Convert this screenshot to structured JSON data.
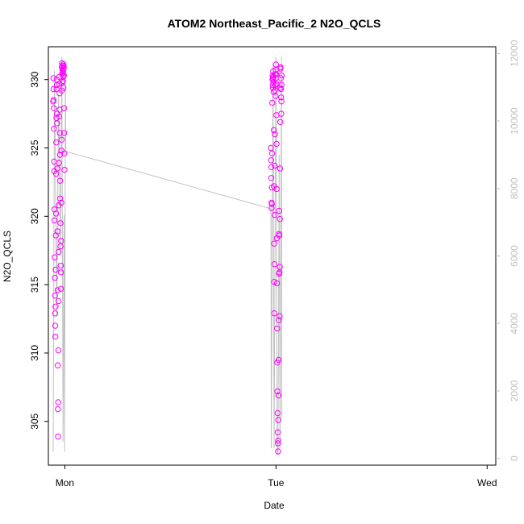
{
  "chart_data": {
    "type": "scatter",
    "title": "ATOM2 Northeast_Pacific_2 N2O_QCLS",
    "xlabel": "Date",
    "ylabel": "N2O_QCLS",
    "x_ticks": [
      "Mon",
      "Tue",
      "Wed"
    ],
    "y_ticks": [
      "305",
      "310",
      "315",
      "320",
      "325",
      "330"
    ],
    "y2_ticks": [
      "0",
      "2000",
      "4000",
      "6000",
      "8000",
      "10000",
      "12000"
    ],
    "xlim": [
      "Sun 22:08",
      "Wed 00:59"
    ],
    "ylim": [
      301.8,
      332.4
    ],
    "y2lim": [
      -200,
      12200
    ],
    "grid": false,
    "colors": {
      "points": "#ff00ff",
      "altitude_line": "#c0c0c0",
      "axis": "#000000",
      "right_axis": "#c0c0c0"
    },
    "series": [
      {
        "values": [
          [
            "Sun 22:41",
            328.4
          ],
          [
            "Sun 22:42",
            330.1
          ],
          [
            "Sun 22:43",
            329.3
          ],
          [
            "Sun 22:44",
            328.5
          ],
          [
            "Sun 22:45",
            327.9
          ],
          [
            "Sun 22:46",
            326.4
          ],
          [
            "Sun 22:47",
            324.0
          ],
          [
            "Sun 22:48",
            323.3
          ],
          [
            "Sun 22:49",
            320.5
          ],
          [
            "Sun 22:50",
            319.7
          ],
          [
            "Sun 22:51",
            317.0
          ],
          [
            "Sun 22:52",
            315.5
          ],
          [
            "Sun 22:53",
            314.2
          ],
          [
            "Sun 22:54",
            312.9
          ],
          [
            "Sun 22:55",
            312.0
          ],
          [
            "Sun 22:56",
            311.2
          ],
          [
            "Sun 22:57",
            313.4
          ],
          [
            "Sun 22:58",
            316.1
          ],
          [
            "Sun 22:59",
            318.6
          ],
          [
            "Sun 23:00",
            320.2
          ],
          [
            "Sun 23:01",
            323.1
          ],
          [
            "Sun 23:02",
            325.4
          ],
          [
            "Sun 23:03",
            327.2
          ],
          [
            "Sun 23:04",
            329.3
          ],
          [
            "Sun 23:05",
            330.0
          ],
          [
            "Sun 23:06",
            329.6
          ],
          [
            "Sun 23:07",
            327.5
          ],
          [
            "Sun 23:08",
            326.8
          ],
          [
            "Sun 23:09",
            323.5
          ],
          [
            "Sun 23:10",
            318.9
          ],
          [
            "Sun 23:11",
            314.6
          ],
          [
            "Sun 23:12",
            309.1
          ],
          [
            "Sun 23:13",
            305.9
          ],
          [
            "Sun 23:14",
            303.9
          ],
          [
            "Sun 23:15",
            306.4
          ],
          [
            "Sun 23:16",
            310.2
          ],
          [
            "Sun 23:17",
            313.8
          ],
          [
            "Sun 23:18",
            317.4
          ],
          [
            "Sun 23:19",
            320.8
          ],
          [
            "Sun 23:20",
            323.9
          ],
          [
            "Sun 23:21",
            327.3
          ],
          [
            "Sun 23:22",
            329.7
          ],
          [
            "Sun 23:23",
            330.2
          ],
          [
            "Sun 23:24",
            329.0
          ],
          [
            "Sun 23:25",
            327.8
          ],
          [
            "Sun 23:26",
            326.1
          ],
          [
            "Sun 23:27",
            324.5
          ],
          [
            "Sun 23:28",
            322.6
          ],
          [
            "Sun 23:29",
            321.3
          ],
          [
            "Sun 23:30",
            319.5
          ],
          [
            "Sun 23:31",
            317.8
          ],
          [
            "Sun 23:32",
            316.4
          ],
          [
            "Sun 23:33",
            314.7
          ],
          [
            "Sun 23:34",
            315.9
          ],
          [
            "Sun 23:35",
            318.2
          ],
          [
            "Sun 23:36",
            321.0
          ],
          [
            "Sun 23:37",
            324.8
          ],
          [
            "Sun 23:38",
            325.6
          ],
          [
            "Sun 23:39",
            329.2
          ],
          [
            "Sun 23:40",
            330.9
          ],
          [
            "Sun 23:41",
            331.2
          ],
          [
            "Sun 23:42",
            330.4
          ],
          [
            "Sun 23:43",
            329.8
          ],
          [
            "Sun 23:44",
            330.7
          ],
          [
            "Sun 23:45",
            331.0
          ],
          [
            "Sun 23:46",
            330.5
          ],
          [
            "Sun 23:47",
            329.9
          ],
          [
            "Sun 23:48",
            330.6
          ],
          [
            "Sun 23:49",
            331.1
          ],
          [
            "Sun 23:50",
            330.2
          ],
          [
            "Sun 23:51",
            329.4
          ],
          [
            "Sun 23:52",
            330.8
          ],
          [
            "Sun 23:53",
            331.0
          ],
          [
            "Sun 23:54",
            330.3
          ],
          [
            "Sun 23:55",
            327.9
          ],
          [
            "Sun 23:56",
            326.1
          ],
          [
            "Sun 23:57",
            324.6
          ],
          [
            "Sun 23:58",
            323.4
          ],
          [
            "Mon 23:26",
            325.0
          ],
          [
            "Mon 23:27",
            324.1
          ],
          [
            "Mon 23:28",
            322.8
          ],
          [
            "Mon 23:29",
            323.6
          ],
          [
            "Mon 23:30",
            321.0
          ],
          [
            "Mon 23:31",
            320.6
          ],
          [
            "Mon 23:32",
            320.9
          ],
          [
            "Mon 23:33",
            322.1
          ],
          [
            "Mon 23:34",
            324.6
          ],
          [
            "Mon 23:35",
            328.3
          ],
          [
            "Mon 23:36",
            330.0
          ],
          [
            "Mon 23:37",
            330.3
          ],
          [
            "Mon 23:38",
            329.6
          ],
          [
            "Mon 23:39",
            330.1
          ],
          [
            "Mon 23:40",
            329.4
          ],
          [
            "Mon 23:41",
            330.6
          ],
          [
            "Mon 23:42",
            330.2
          ],
          [
            "Mon 23:43",
            329.8
          ],
          [
            "Mon 23:44",
            329.1
          ],
          [
            "Mon 23:45",
            326.3
          ],
          [
            "Mon 23:46",
            322.2
          ],
          [
            "Mon 23:47",
            318.0
          ],
          [
            "Mon 23:48",
            315.2
          ],
          [
            "Mon 23:49",
            312.9
          ],
          [
            "Mon 23:50",
            316.5
          ],
          [
            "Mon 23:51",
            320.1
          ],
          [
            "Mon 23:52",
            323.7
          ],
          [
            "Mon 23:53",
            326.0
          ],
          [
            "Mon 23:54",
            329.2
          ],
          [
            "Mon 23:55",
            330.4
          ],
          [
            "Mon 23:56",
            329.6
          ],
          [
            "Mon 23:57",
            328.8
          ],
          [
            "Mon 23:58",
            330.1
          ],
          [
            "Mon 23:59",
            330.7
          ],
          [
            "Tue 00:00",
            331.1
          ],
          [
            "Tue 00:01",
            330.4
          ],
          [
            "Tue 00:02",
            329.7
          ],
          [
            "Tue 00:03",
            327.4
          ],
          [
            "Tue 00:04",
            325.3
          ],
          [
            "Tue 00:05",
            322.0
          ],
          [
            "Tue 00:06",
            318.4
          ],
          [
            "Tue 00:07",
            315.1
          ],
          [
            "Tue 00:08",
            311.8
          ],
          [
            "Tue 00:09",
            309.3
          ],
          [
            "Tue 00:10",
            307.2
          ],
          [
            "Tue 00:11",
            305.6
          ],
          [
            "Tue 00:12",
            304.2
          ],
          [
            "Tue 00:13",
            303.4
          ],
          [
            "Tue 00:14",
            302.8
          ],
          [
            "Tue 00:15",
            303.6
          ],
          [
            "Tue 00:16",
            305.1
          ],
          [
            "Tue 00:17",
            306.9
          ],
          [
            "Tue 00:18",
            309.5
          ],
          [
            "Tue 00:19",
            312.4
          ],
          [
            "Tue 00:20",
            315.8
          ],
          [
            "Tue 00:21",
            318.7
          ],
          [
            "Tue 00:22",
            320.4
          ],
          [
            "Tue 00:23",
            318.6
          ],
          [
            "Tue 00:24",
            315.9
          ],
          [
            "Tue 00:25",
            312.7
          ],
          [
            "Tue 00:26",
            316.3
          ],
          [
            "Tue 00:27",
            319.8
          ],
          [
            "Tue 00:28",
            323.5
          ],
          [
            "Tue 00:29",
            326.9
          ],
          [
            "Tue 00:30",
            329.4
          ],
          [
            "Tue 00:31",
            330.8
          ],
          [
            "Tue 00:32",
            330.9
          ],
          [
            "Tue 00:33",
            330.1
          ],
          [
            "Tue 00:34",
            329.3
          ],
          [
            "Tue 00:35",
            328.7
          ],
          [
            "Tue 00:36",
            327.5
          ],
          [
            "Tue 00:37",
            328.4
          ],
          [
            "Tue 00:38",
            329.6
          ],
          [
            "Tue 00:39",
            330.3
          ]
        ]
      }
    ]
  }
}
